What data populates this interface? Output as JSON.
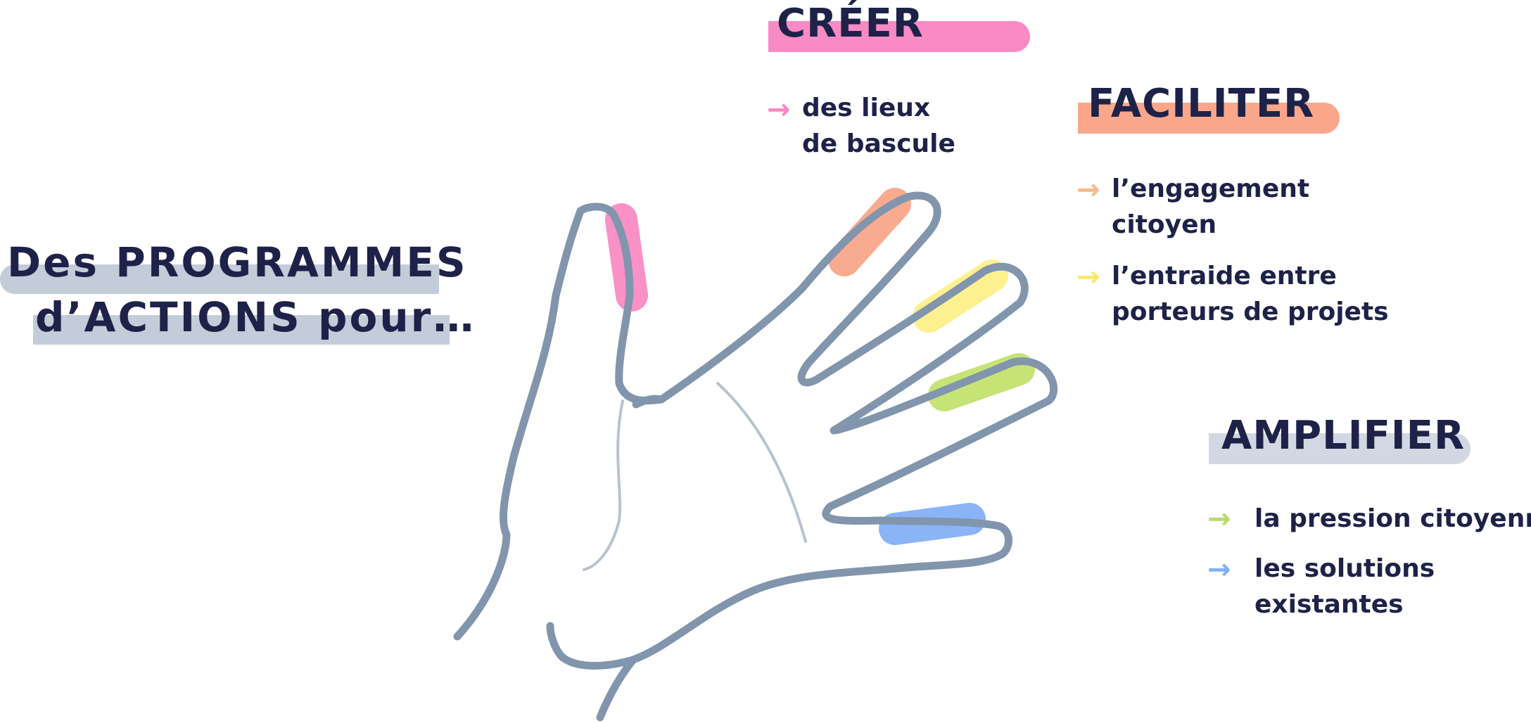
{
  "colors": {
    "navy": "#1e2248",
    "hand_outline": "#8195ad",
    "main_highlight": "#c3ccd9",
    "pink": "#f98bc4",
    "orange": "#f9a68a",
    "yellow": "#fdf08a",
    "green": "#c3e26f",
    "blue": "#83b0f7",
    "amplifier_highlight": "#d2d8e3"
  },
  "main_title": {
    "line1": "Des PROGRAMMES",
    "line2": "d’ACTIONS pour…"
  },
  "sections": {
    "creer": {
      "title": "CRÉER",
      "items": [
        {
          "lines": [
            "des lieux",
            "de bascule"
          ],
          "arrow_color": "#f98bc4"
        }
      ]
    },
    "faciliter": {
      "title": "FACILITER",
      "items": [
        {
          "lines": [
            "l’engagement",
            "citoyen"
          ],
          "arrow_color": "#f9b98a"
        },
        {
          "lines": [
            "l’entraide entre",
            "porteurs de projets"
          ],
          "arrow_color": "#fbe86a"
        }
      ]
    },
    "amplifier": {
      "title": "AMPLIFIER",
      "items": [
        {
          "lines": [
            "la pression citoyenne"
          ],
          "arrow_color": "#b6dc6a"
        },
        {
          "lines": [
            "les solutions",
            "existantes"
          ],
          "arrow_color": "#83b0f7"
        }
      ]
    }
  },
  "icons": {
    "arrow": "right-arrow-icon",
    "hand": "hand-illustration"
  }
}
